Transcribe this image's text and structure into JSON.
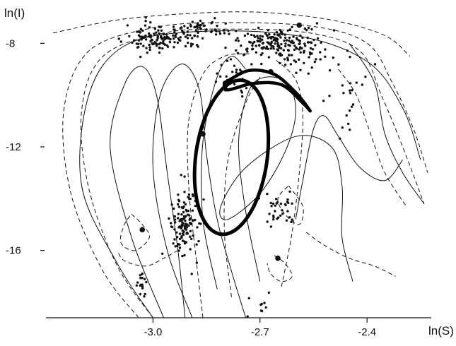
{
  "chart_data": {
    "type": "scatter",
    "title": "",
    "xlabel": "ln(S)",
    "ylabel": "ln(I)",
    "xlim": [
      -3.3,
      -2.22
    ],
    "ylim": [
      -18.6,
      -6.6
    ],
    "grid": false,
    "legend": "none",
    "x_ticks": [
      -3.0,
      -2.7,
      -2.4
    ],
    "x_tick_labels": [
      "-3.0",
      "-2.7",
      "-2.4"
    ],
    "y_ticks": [
      -8,
      -12,
      -16
    ],
    "y_tick_labels": [
      "-8",
      "-12",
      "-16"
    ],
    "series": [
      {
        "style": "dots",
        "clusters": [
          {
            "cx": -2.98,
            "cy": -7.85,
            "sx": 0.05,
            "sy": 0.28,
            "n": 120
          },
          {
            "cx": -2.86,
            "cy": -7.5,
            "sx": 0.05,
            "sy": 0.2,
            "n": 60
          },
          {
            "cx": -2.66,
            "cy": -8.0,
            "sx": 0.06,
            "sy": 0.3,
            "n": 160
          },
          {
            "cx": -2.58,
            "cy": -8.4,
            "sx": 0.04,
            "sy": 0.4,
            "n": 40
          },
          {
            "cx": -2.91,
            "cy": -15.0,
            "sx": 0.022,
            "sy": 0.75,
            "n": 130
          },
          {
            "cx": -2.65,
            "cy": -14.5,
            "sx": 0.03,
            "sy": 0.35,
            "n": 35
          },
          {
            "cx": -3.03,
            "cy": -17.4,
            "sx": 0.008,
            "sy": 0.4,
            "n": 18
          },
          {
            "cx": -2.76,
            "cy": -9.4,
            "sx": 0.04,
            "sy": 0.45,
            "n": 30
          },
          {
            "cx": -2.47,
            "cy": -10.0,
            "sx": 0.03,
            "sy": 0.9,
            "n": 25
          },
          {
            "cx": -2.7,
            "cy": -18.2,
            "sx": 0.02,
            "sy": 0.3,
            "n": 12
          }
        ],
        "seed": 17
      },
      {
        "style": "large-dots",
        "points": [
          [
            -2.59,
            -7.3
          ],
          [
            -2.86,
            -11.5
          ],
          [
            -2.65,
            -16.3
          ],
          [
            -3.03,
            -15.2
          ],
          [
            -2.67,
            -9.1
          ]
        ]
      },
      {
        "style": "thick-loop",
        "shape": "ellipse",
        "cx": -2.78,
        "cy": -12.4,
        "rx": 0.1,
        "ry": 3.0,
        "rotation_deg": -8
      },
      {
        "style": "thick-loop",
        "shape": "figure-eight",
        "points": [
          [
            -2.79,
            -9.45
          ],
          [
            -2.73,
            -9.05
          ],
          [
            -2.66,
            -9.2
          ],
          [
            -2.6,
            -9.9
          ],
          [
            -2.56,
            -10.6
          ],
          [
            -2.58,
            -10.3
          ],
          [
            -2.64,
            -9.6
          ],
          [
            -2.72,
            -9.55
          ],
          [
            -2.79,
            -9.8
          ],
          [
            -2.8,
            -9.55
          ]
        ]
      },
      {
        "style": "solid-curves",
        "curves": [
          [
            [
              -3.0,
              -18.6
            ],
            [
              -3.1,
              -16.5
            ],
            [
              -3.2,
              -13.5
            ],
            [
              -3.18,
              -10.0
            ],
            [
              -3.08,
              -8.1
            ],
            [
              -2.88,
              -7.55
            ],
            [
              -2.6,
              -7.7
            ],
            [
              -2.4,
              -8.7
            ],
            [
              -2.3,
              -10.5
            ],
            [
              -2.25,
              -12.5
            ]
          ],
          [
            [
              -2.97,
              -18.6
            ],
            [
              -3.06,
              -15.5
            ],
            [
              -3.12,
              -12.0
            ],
            [
              -3.08,
              -9.6
            ],
            [
              -3.03,
              -8.9
            ],
            [
              -2.99,
              -10.0
            ],
            [
              -2.96,
              -13.0
            ],
            [
              -2.93,
              -16.0
            ],
            [
              -2.91,
              -18.6
            ]
          ],
          [
            [
              -2.89,
              -18.6
            ],
            [
              -2.96,
              -16.0
            ],
            [
              -3.0,
              -12.8
            ],
            [
              -2.98,
              -10.0
            ],
            [
              -2.92,
              -8.8
            ],
            [
              -2.87,
              -9.8
            ],
            [
              -2.85,
              -12.3
            ],
            [
              -2.82,
              -14.8
            ],
            [
              -2.78,
              -16.8
            ],
            [
              -2.74,
              -18.6
            ]
          ],
          [
            [
              -2.82,
              -17.5
            ],
            [
              -2.86,
              -14.8
            ],
            [
              -2.86,
              -11.8
            ],
            [
              -2.82,
              -9.3
            ],
            [
              -2.78,
              -8.5
            ],
            [
              -2.74,
              -9.0
            ]
          ],
          [
            [
              -2.7,
              -17.2
            ],
            [
              -2.74,
              -14.5
            ],
            [
              -2.76,
              -11.8
            ],
            [
              -2.73,
              -9.8
            ],
            [
              -2.68,
              -9.3
            ],
            [
              -2.62,
              -9.6
            ],
            [
              -2.6,
              -10.7
            ],
            [
              -2.63,
              -12.2
            ],
            [
              -2.7,
              -13.8
            ],
            [
              -2.79,
              -14.8
            ],
            [
              -2.81,
              -14.3
            ],
            [
              -2.74,
              -12.8
            ],
            [
              -2.6,
              -11.6
            ],
            [
              -2.5,
              -12.0
            ],
            [
              -2.47,
              -13.5
            ],
            [
              -2.47,
              -15.5
            ],
            [
              -2.44,
              -17.2
            ]
          ],
          [
            [
              -2.6,
              -14.8
            ],
            [
              -2.58,
              -13.3
            ],
            [
              -2.55,
              -11.3
            ],
            [
              -2.52,
              -10.8
            ],
            [
              -2.48,
              -11.6
            ],
            [
              -2.42,
              -12.8
            ],
            [
              -2.35,
              -13.3
            ],
            [
              -2.3,
              -12.5
            ]
          ],
          [
            [
              -2.45,
              -8.0
            ],
            [
              -2.38,
              -9.5
            ],
            [
              -2.35,
              -11.5
            ],
            [
              -2.3,
              -13.0
            ],
            [
              -2.24,
              -14.2
            ]
          ]
        ]
      },
      {
        "style": "dashed-curves",
        "curves": [
          [
            [
              -3.28,
              -7.6
            ],
            [
              -3.1,
              -7.1
            ],
            [
              -2.9,
              -6.85
            ],
            [
              -2.7,
              -6.8
            ],
            [
              -2.5,
              -7.1
            ],
            [
              -2.35,
              -7.7
            ],
            [
              -2.28,
              -8.5
            ]
          ],
          [
            [
              -3.04,
              -18.6
            ],
            [
              -3.14,
              -16.8
            ],
            [
              -3.23,
              -13.8
            ],
            [
              -3.25,
              -10.6
            ],
            [
              -3.18,
              -8.3
            ],
            [
              -3.0,
              -7.4
            ],
            [
              -2.8,
              -7.2
            ],
            [
              -2.55,
              -7.35
            ],
            [
              -2.4,
              -8.0
            ],
            [
              -2.33,
              -9.5
            ],
            [
              -2.27,
              -11.3
            ],
            [
              -2.23,
              -13.0
            ]
          ],
          [
            [
              -3.0,
              -18.6
            ],
            [
              -3.1,
              -16.6
            ],
            [
              -3.18,
              -13.6
            ],
            [
              -3.2,
              -10.6
            ],
            [
              -3.14,
              -8.5
            ],
            [
              -2.97,
              -7.6
            ],
            [
              -2.78,
              -7.45
            ],
            [
              -2.56,
              -7.6
            ],
            [
              -2.42,
              -8.3
            ],
            [
              -2.36,
              -10.0
            ],
            [
              -2.3,
              -12.0
            ],
            [
              -2.24,
              -14.2
            ]
          ],
          [
            [
              -2.86,
              -18.6
            ],
            [
              -2.88,
              -16.2
            ],
            [
              -2.9,
              -13.5
            ],
            [
              -2.9,
              -11.0
            ],
            [
              -2.86,
              -9.2
            ],
            [
              -2.8,
              -8.5
            ],
            [
              -2.73,
              -8.4
            ]
          ],
          [
            [
              -2.78,
              -17.8
            ],
            [
              -2.8,
              -15.2
            ],
            [
              -2.79,
              -12.5
            ],
            [
              -2.74,
              -10.3
            ],
            [
              -2.7,
              -9.3
            ]
          ],
          [
            [
              -2.64,
              -17.4
            ],
            [
              -2.61,
              -15.3
            ],
            [
              -2.59,
              -13.0
            ],
            [
              -2.58,
              -10.8
            ],
            [
              -2.6,
              -9.4
            ],
            [
              -2.66,
              -8.6
            ]
          ],
          [
            [
              -2.62,
              -13.5
            ],
            [
              -2.58,
              -14.3
            ],
            [
              -2.59,
              -15.0
            ],
            [
              -2.63,
              -14.6
            ],
            [
              -2.65,
              -14.0
            ],
            [
              -2.62,
              -13.5
            ]
          ],
          [
            [
              -3.06,
              -14.6
            ],
            [
              -3.03,
              -15.0
            ],
            [
              -3.01,
              -15.5
            ],
            [
              -3.05,
              -16.0
            ],
            [
              -3.09,
              -15.7
            ],
            [
              -3.08,
              -15.0
            ],
            [
              -3.06,
              -14.6
            ]
          ],
          [
            [
              -2.93,
              -16.0
            ],
            [
              -2.97,
              -16.3
            ],
            [
              -3.02,
              -16.6
            ],
            [
              -3.08,
              -16.4
            ],
            [
              -3.1,
              -16.0
            ]
          ],
          [
            [
              -2.66,
              -16.2
            ],
            [
              -2.63,
              -16.5
            ],
            [
              -2.61,
              -17.0
            ],
            [
              -2.64,
              -17.2
            ],
            [
              -2.67,
              -16.9
            ],
            [
              -2.68,
              -16.5
            ]
          ],
          [
            [
              -2.57,
              -15.3
            ],
            [
              -2.52,
              -15.8
            ],
            [
              -2.45,
              -16.3
            ],
            [
              -2.38,
              -16.6
            ],
            [
              -2.32,
              -17.0
            ]
          ],
          [
            [
              -2.48,
              -9.0
            ],
            [
              -2.43,
              -10.0
            ],
            [
              -2.39,
              -11.5
            ],
            [
              -2.35,
              -13.0
            ],
            [
              -2.29,
              -14.3
            ]
          ]
        ]
      }
    ]
  }
}
